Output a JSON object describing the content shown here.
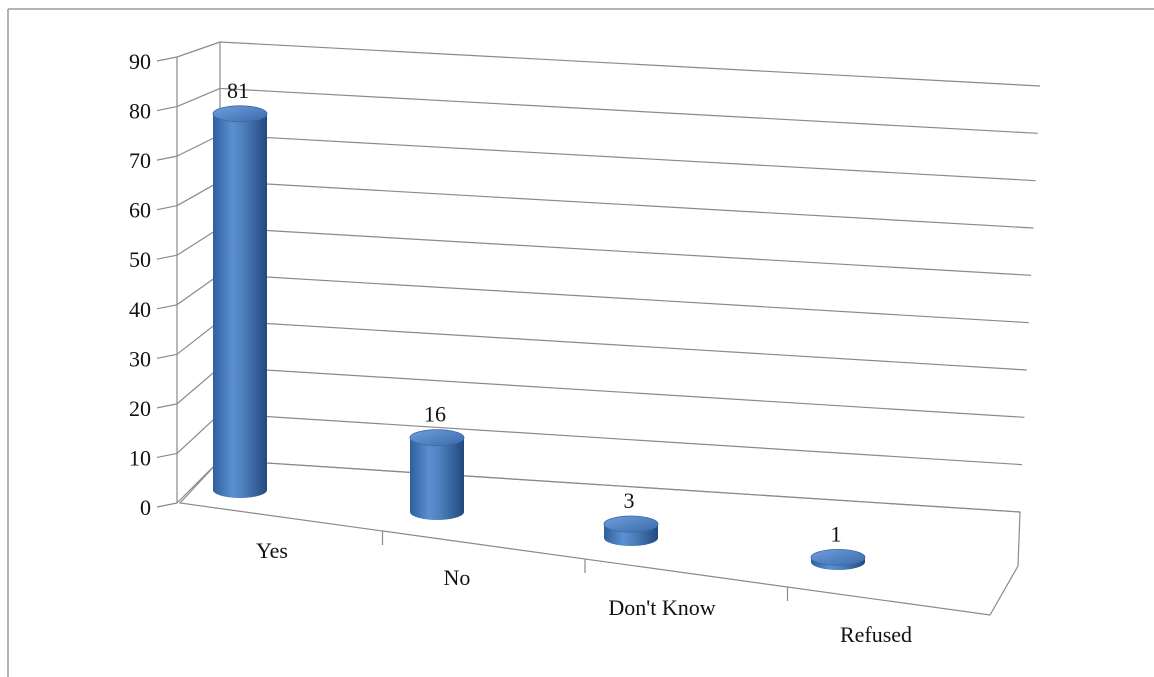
{
  "chart_data": {
    "type": "bar",
    "style": "3d-cylinder",
    "categories": [
      "Yes",
      "No",
      "Don't Know",
      "Refused"
    ],
    "values": [
      81,
      16,
      3,
      1
    ],
    "data_labels": [
      "81",
      "16",
      "3",
      "1"
    ],
    "title": "",
    "xlabel": "",
    "ylabel": "",
    "ylim": [
      0,
      90
    ],
    "yticks": [
      0,
      10,
      20,
      30,
      40,
      50,
      60,
      70,
      80,
      90
    ],
    "grid": true,
    "legend": "none",
    "bar_color": "#4f81bd"
  }
}
